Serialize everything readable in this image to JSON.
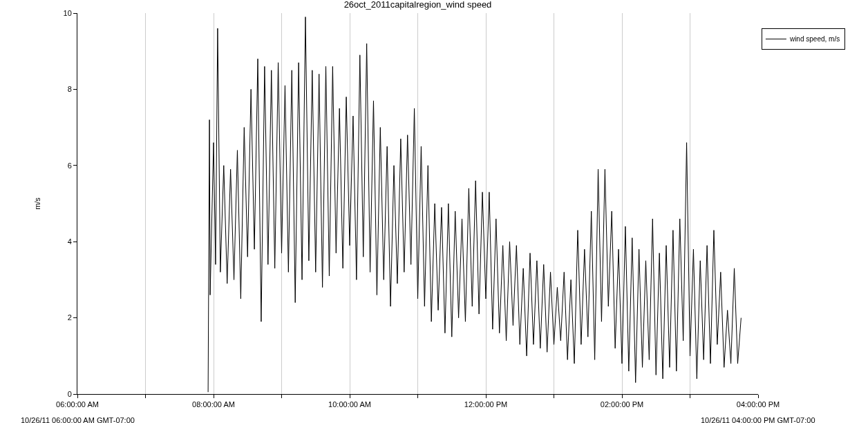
{
  "chart_data": {
    "type": "line",
    "title": "26oct_2011capitalregion_wind speed",
    "ylabel": "m/s",
    "annotations": [
      "10/26/11 06:00:00 AM GMT-07:00",
      "10/26/11 04:00:00 PM GMT-07:00"
    ],
    "xlim": [
      6,
      16
    ],
    "xticks": [
      {
        "value": 6,
        "label": "06:00:00 AM"
      },
      {
        "value": 7,
        "label": null
      },
      {
        "value": 8,
        "label": "08:00:00 AM"
      },
      {
        "value": 9,
        "label": null
      },
      {
        "value": 10,
        "label": "10:00:00 AM"
      },
      {
        "value": 11,
        "label": null
      },
      {
        "value": 12,
        "label": "12:00:00 PM"
      },
      {
        "value": 13,
        "label": null
      },
      {
        "value": 14,
        "label": "02:00:00 PM"
      },
      {
        "value": 15,
        "label": null
      },
      {
        "value": 16,
        "label": "04:00:00 PM"
      }
    ],
    "ylim": [
      0,
      10
    ],
    "yticks": [
      0,
      2,
      4,
      6,
      8,
      10
    ],
    "grid": "x",
    "legend": "top right",
    "marker": "none",
    "line_style": "solid",
    "series": [
      {
        "name": "wind speed, m/s",
        "color": "#000000",
        "x": [
          7.92,
          7.94,
          7.95,
          8.0,
          8.03,
          8.06,
          8.1,
          8.15,
          8.2,
          8.25,
          8.3,
          8.35,
          8.4,
          8.45,
          8.5,
          8.55,
          8.6,
          8.65,
          8.7,
          8.75,
          8.8,
          8.85,
          8.9,
          8.95,
          9.0,
          9.05,
          9.1,
          9.15,
          9.2,
          9.25,
          9.3,
          9.35,
          9.4,
          9.45,
          9.5,
          9.55,
          9.6,
          9.65,
          9.7,
          9.75,
          9.8,
          9.85,
          9.9,
          9.95,
          10.0,
          10.05,
          10.1,
          10.15,
          10.2,
          10.25,
          10.3,
          10.35,
          10.4,
          10.45,
          10.5,
          10.55,
          10.6,
          10.65,
          10.7,
          10.75,
          10.8,
          10.85,
          10.9,
          10.95,
          11.0,
          11.05,
          11.1,
          11.15,
          11.2,
          11.25,
          11.3,
          11.35,
          11.4,
          11.45,
          11.5,
          11.55,
          11.6,
          11.65,
          11.7,
          11.75,
          11.8,
          11.85,
          11.9,
          11.95,
          12.0,
          12.05,
          12.1,
          12.15,
          12.2,
          12.25,
          12.3,
          12.35,
          12.4,
          12.45,
          12.5,
          12.55,
          12.6,
          12.65,
          12.7,
          12.75,
          12.8,
          12.85,
          12.9,
          12.95,
          13.0,
          13.05,
          13.1,
          13.15,
          13.2,
          13.25,
          13.3,
          13.35,
          13.4,
          13.45,
          13.5,
          13.55,
          13.6,
          13.65,
          13.7,
          13.75,
          13.8,
          13.85,
          13.9,
          13.95,
          14.0,
          14.05,
          14.1,
          14.15,
          14.2,
          14.25,
          14.3,
          14.35,
          14.4,
          14.45,
          14.5,
          14.55,
          14.6,
          14.65,
          14.7,
          14.75,
          14.8,
          14.85,
          14.9,
          14.95,
          15.0,
          15.05,
          15.1,
          15.15,
          15.2,
          15.25,
          15.3,
          15.35,
          15.4,
          15.45,
          15.5,
          15.55,
          15.6,
          15.65,
          15.7,
          15.75
        ],
        "values": [
          0.05,
          7.2,
          2.6,
          6.6,
          3.4,
          9.6,
          3.2,
          6.0,
          2.9,
          5.9,
          3.0,
          6.4,
          2.5,
          7.0,
          3.6,
          8.0,
          3.8,
          8.8,
          1.9,
          8.6,
          3.4,
          8.5,
          3.3,
          8.7,
          3.7,
          8.1,
          3.2,
          8.5,
          2.4,
          8.7,
          3.0,
          9.9,
          3.5,
          8.5,
          3.2,
          8.4,
          2.8,
          8.6,
          3.1,
          8.6,
          3.7,
          7.5,
          3.3,
          7.8,
          3.9,
          7.3,
          3.0,
          8.9,
          3.6,
          9.2,
          3.2,
          7.7,
          2.6,
          7.0,
          3.0,
          6.5,
          2.3,
          6.0,
          2.9,
          6.7,
          3.2,
          6.8,
          3.4,
          7.5,
          2.5,
          6.5,
          2.3,
          6.0,
          1.9,
          5.0,
          2.2,
          4.9,
          1.6,
          5.0,
          1.5,
          4.8,
          2.0,
          4.6,
          1.9,
          5.4,
          2.3,
          5.6,
          2.1,
          5.3,
          2.5,
          5.3,
          1.7,
          4.6,
          1.6,
          3.9,
          1.4,
          4.0,
          1.8,
          3.9,
          1.3,
          3.3,
          1.0,
          3.7,
          1.3,
          3.5,
          1.2,
          3.4,
          1.1,
          3.2,
          1.3,
          2.8,
          1.4,
          3.2,
          0.9,
          3.0,
          0.8,
          4.3,
          1.3,
          3.8,
          1.5,
          4.8,
          0.9,
          5.9,
          1.9,
          5.9,
          2.3,
          4.8,
          1.2,
          3.8,
          0.8,
          4.4,
          0.6,
          4.1,
          0.3,
          3.8,
          0.7,
          3.5,
          0.9,
          4.6,
          0.5,
          3.7,
          0.4,
          3.9,
          0.7,
          4.3,
          0.6,
          4.6,
          1.4,
          6.6,
          1.0,
          3.8,
          0.4,
          3.5,
          0.9,
          3.9,
          0.8,
          4.3,
          1.3,
          3.2,
          0.7,
          2.2,
          0.8,
          3.3,
          0.8,
          2.0
        ]
      }
    ]
  }
}
